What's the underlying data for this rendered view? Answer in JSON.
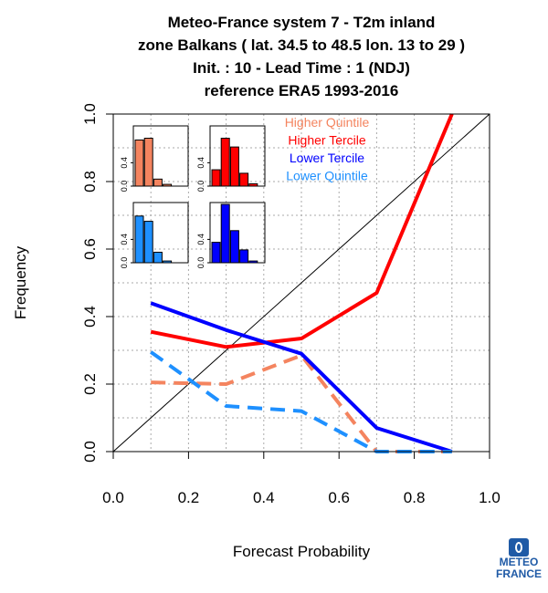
{
  "title": {
    "lines": [
      "Meteo-France system 7  -  T2m inland",
      "zone Balkans ( lat. 34.5 to 48.5    lon. 13 to 29 )",
      "Init. : 10  - Lead Time : 1 (NDJ)",
      "reference ERA5 1993-2016"
    ]
  },
  "logo": {
    "line1": "METEO",
    "line2": "FRANCE"
  },
  "chart_data": {
    "type": "line",
    "xlabel": "Forecast Probability",
    "ylabel": "Frequency",
    "xlim": [
      0,
      1
    ],
    "ylim": [
      0,
      1
    ],
    "x_ticks": [
      "0.0",
      "0.2",
      "0.4",
      "0.6",
      "0.8",
      "1.0"
    ],
    "y_ticks": [
      "0.0",
      "0.2",
      "0.4",
      "0.6",
      "0.8",
      "1.0"
    ],
    "grid": true,
    "diagonal": true,
    "legend_position": "top-right",
    "x": [
      0.1,
      0.3,
      0.5,
      0.7,
      0.9
    ],
    "series": [
      {
        "name": "Higher Quintile",
        "color": "#f4845f",
        "dashed": true,
        "values": [
          0.205,
          0.2,
          0.285,
          0.0,
          0.0
        ]
      },
      {
        "name": "Higher Tercile",
        "color": "#ff0000",
        "dashed": false,
        "values": [
          0.355,
          0.31,
          0.335,
          0.47,
          1.0
        ]
      },
      {
        "name": "Lower Tercile",
        "color": "#0000ff",
        "dashed": false,
        "values": [
          0.44,
          0.36,
          0.29,
          0.07,
          0.0
        ]
      },
      {
        "name": "Lower Quintile",
        "color": "#1e90ff",
        "dashed": true,
        "values": [
          0.295,
          0.135,
          0.12,
          0.0,
          0.0
        ]
      }
    ],
    "histograms": {
      "y_ticks": [
        "0.0",
        "0.4"
      ],
      "panels": [
        {
          "series": "Higher Quintile",
          "color": "#f4845f",
          "values": [
            0.79,
            0.82,
            0.12,
            0.03,
            0.0
          ]
        },
        {
          "series": "Higher Tercile",
          "color": "#ff0000",
          "values": [
            0.28,
            0.82,
            0.67,
            0.22,
            0.04
          ]
        },
        {
          "series": "Lower Quintile",
          "color": "#1e90ff",
          "values": [
            0.8,
            0.71,
            0.18,
            0.03,
            0.0
          ]
        },
        {
          "series": "Lower Tercile",
          "color": "#0000ff",
          "values": [
            0.35,
            1.0,
            0.55,
            0.22,
            0.03
          ]
        }
      ]
    }
  }
}
